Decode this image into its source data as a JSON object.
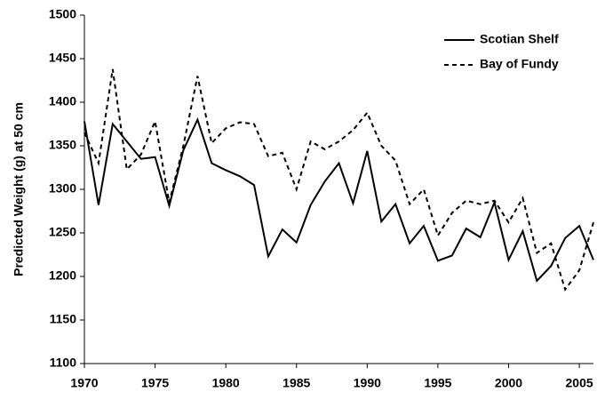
{
  "chart_data": {
    "type": "line",
    "ylabel": "Predicted Weight (g) at 50 cm",
    "x": [
      1970,
      1971,
      1972,
      1973,
      1974,
      1975,
      1976,
      1977,
      1978,
      1979,
      1980,
      1981,
      1982,
      1983,
      1984,
      1985,
      1986,
      1987,
      1988,
      1989,
      1990,
      1991,
      1992,
      1993,
      1994,
      1995,
      1996,
      1997,
      1998,
      1999,
      2000,
      2001,
      2002,
      2003,
      2004,
      2005,
      2006
    ],
    "series": [
      {
        "name": "Scotian Shelf",
        "color": "#000000",
        "style": "solid",
        "values": [
          1378,
          1282,
          1375,
          1355,
          1335,
          1337,
          1281,
          1345,
          1380,
          1330,
          1322,
          1315,
          1305,
          1223,
          1254,
          1239,
          1282,
          1309,
          1330,
          1284,
          1344,
          1263,
          1283,
          1238,
          1258,
          1218,
          1224,
          1255,
          1245,
          1285,
          1219,
          1252,
          1195,
          1212,
          1244,
          1258,
          1219
        ]
      },
      {
        "name": "Bay of Fundy",
        "color": "#000000",
        "style": "dashed",
        "values": [
          1365,
          1330,
          1438,
          1323,
          1340,
          1378,
          1285,
          1350,
          1430,
          1353,
          1370,
          1377,
          1375,
          1338,
          1342,
          1300,
          1355,
          1346,
          1355,
          1368,
          1388,
          1350,
          1333,
          1283,
          1300,
          1247,
          1273,
          1287,
          1283,
          1287,
          1262,
          1290,
          1227,
          1238,
          1185,
          1207,
          1262
        ]
      }
    ],
    "xlim": [
      1970,
      2006
    ],
    "xticks": [
      1970,
      1975,
      1980,
      1985,
      1990,
      1995,
      2000,
      2005
    ],
    "ylim": [
      1100,
      1500
    ],
    "yticks": [
      1100,
      1150,
      1200,
      1250,
      1300,
      1350,
      1400,
      1450,
      1500
    ],
    "grid": false,
    "legend": "top-right"
  }
}
